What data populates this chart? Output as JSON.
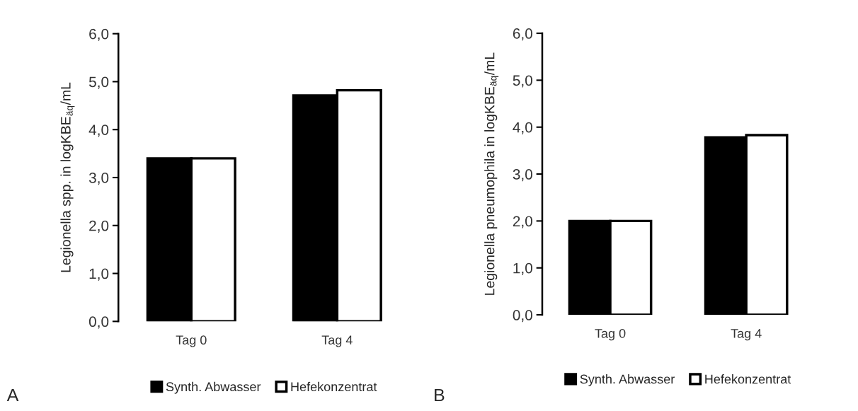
{
  "chart_data": [
    {
      "type": "bar",
      "ylabel": "Legionella spp. in logKBE$_{äq}$/mL",
      "categories": [
        "Tag 0",
        "Tag 4"
      ],
      "series": [
        {
          "name": "Synth. Abwasser",
          "color": "#000000",
          "values": [
            3.4,
            4.71
          ]
        },
        {
          "name": "Hefekonzentrat",
          "color": "#ffffff",
          "values": [
            3.4,
            4.82
          ]
        }
      ],
      "ylim": [
        0,
        6
      ],
      "yticks": [
        {
          "value": 0,
          "label": "0,0"
        },
        {
          "value": 1,
          "label": "1,0"
        },
        {
          "value": 2,
          "label": "2,0"
        },
        {
          "value": 3,
          "label": "3,0"
        },
        {
          "value": 4,
          "label": "4,0"
        },
        {
          "value": 5,
          "label": "5,0"
        },
        {
          "value": 6,
          "label": "6,0"
        }
      ],
      "grid": false,
      "legend": "bottom",
      "annotations": [
        "A"
      ]
    },
    {
      "type": "bar",
      "ylabel": "Legionella pneumophila in logKBE$_{äq}$/mL",
      "categories": [
        "Tag 0",
        "Tag 4"
      ],
      "series": [
        {
          "name": "Synth. Abwasser",
          "color": "#000000",
          "values": [
            2.0,
            3.78
          ]
        },
        {
          "name": "Hefekonzentrat",
          "color": "#ffffff",
          "values": [
            2.0,
            3.83
          ]
        }
      ],
      "ylim": [
        0,
        6
      ],
      "yticks": [
        {
          "value": 0,
          "label": "0,0"
        },
        {
          "value": 1,
          "label": "1,0"
        },
        {
          "value": 2,
          "label": "2,0"
        },
        {
          "value": 3,
          "label": "3,0"
        },
        {
          "value": 4,
          "label": "4,0"
        },
        {
          "value": 5,
          "label": "5,0"
        },
        {
          "value": 6,
          "label": "6,0"
        }
      ],
      "grid": false,
      "legend": "bottom",
      "annotations": [
        "B"
      ]
    }
  ]
}
